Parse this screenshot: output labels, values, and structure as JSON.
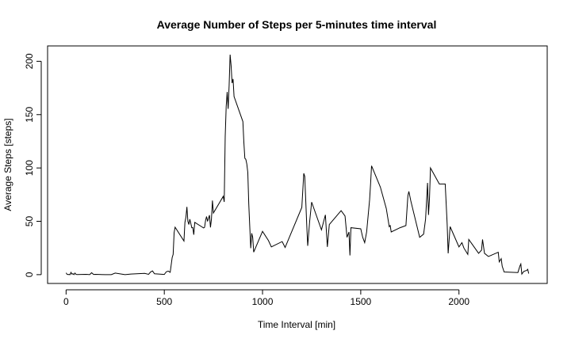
{
  "chart_data": {
    "type": "line",
    "title": "Average Number of Steps per 5-minutes time interval",
    "x_label": "Time Interval [min]",
    "y_label": "Average Steps [steps]",
    "xlim": [
      -94.2,
      2449.2
    ],
    "xticks": [
      0,
      500,
      1000,
      1500,
      2000
    ],
    "ylim": [
      -8.25,
      214.4
    ],
    "yticks": [
      0,
      50,
      100,
      150,
      200
    ],
    "grid": false,
    "series": [
      {
        "color": "#000000",
        "x": [
          0,
          5,
          10,
          15,
          20,
          25,
          30,
          35,
          40,
          45,
          50,
          55,
          100,
          110,
          120,
          130,
          140,
          150,
          200,
          230,
          250,
          300,
          330,
          400,
          420,
          430,
          440,
          450,
          500,
          510,
          520,
          530,
          540,
          545,
          550,
          555,
          600,
          605,
          610,
          615,
          620,
          625,
          630,
          640,
          645,
          650,
          655,
          700,
          705,
          710,
          715,
          720,
          730,
          735,
          740,
          745,
          750,
          800,
          805,
          810,
          815,
          820,
          825,
          830,
          835,
          840,
          845,
          850,
          855,
          900,
          905,
          910,
          915,
          920,
          925,
          930,
          935,
          940,
          945,
          950,
          955,
          1000,
          1030,
          1045,
          1100,
          1115,
          1200,
          1210,
          1215,
          1225,
          1230,
          1240,
          1250,
          1300,
          1320,
          1330,
          1340,
          1400,
          1420,
          1430,
          1440,
          1445,
          1450,
          1500,
          1510,
          1520,
          1530,
          1545,
          1550,
          1555,
          1600,
          1630,
          1645,
          1650,
          1655,
          1700,
          1730,
          1740,
          1745,
          1755,
          1800,
          1820,
          1830,
          1840,
          1845,
          1850,
          1855,
          1900,
          1930,
          1940,
          1945,
          1950,
          1955,
          2000,
          2015,
          2025,
          2045,
          2050,
          2100,
          2115,
          2120,
          2130,
          2150,
          2200,
          2205,
          2215,
          2220,
          2230,
          2300,
          2310,
          2315,
          2320,
          2330,
          2345,
          2350,
          2355
        ],
        "values": [
          1.7,
          0.3,
          0.1,
          0.2,
          0,
          2.1,
          0.5,
          0.9,
          0,
          1.5,
          0.3,
          0.1,
          0.3,
          0.2,
          0,
          1.8,
          0.2,
          0.3,
          0,
          0,
          1.5,
          0,
          0.6,
          1.2,
          0.3,
          2.5,
          3.5,
          0.8,
          0.2,
          2.7,
          3.3,
          2.2,
          16,
          19,
          39.5,
          44.5,
          31.5,
          49,
          53.8,
          63.5,
          50,
          47,
          52,
          44,
          44.2,
          37.4,
          49,
          43.8,
          44.4,
          50.8,
          54.5,
          49.9,
          55.7,
          44.3,
          52.3,
          69.5,
          57.8,
          73.4,
          68.2,
          129.4,
          157.5,
          171.2,
          155.4,
          177.3,
          206.2,
          195.9,
          179.6,
          183.4,
          167,
          143.5,
          124,
          109.1,
          108.1,
          103.7,
          95.9,
          66.2,
          45.2,
          24.8,
          38.8,
          34.9,
          21.1,
          40.6,
          32,
          26,
          31,
          25.5,
          63,
          95,
          92,
          47,
          27,
          50,
          68,
          42,
          56,
          26,
          47,
          60,
          55,
          35,
          40,
          18,
          44,
          43,
          35,
          30,
          40,
          70,
          85,
          102,
          82,
          62,
          45,
          46,
          40,
          44,
          46,
          74,
          78,
          69,
          35,
          38,
          52,
          86,
          56,
          72,
          100,
          85,
          85,
          47,
          20,
          33,
          45,
          26,
          30,
          25,
          19,
          33,
          20,
          23,
          33,
          20,
          17,
          21,
          12,
          15,
          8,
          2.5,
          2,
          8,
          10,
          0.5,
          3,
          4,
          5,
          1
        ]
      }
    ]
  }
}
